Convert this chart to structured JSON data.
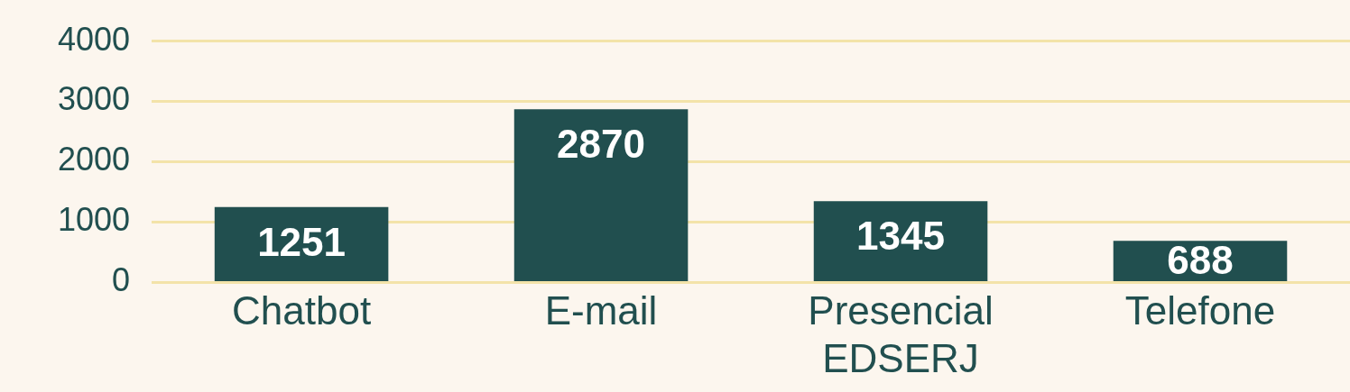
{
  "chart_data": {
    "type": "bar",
    "categories": [
      "Chatbot",
      "E-mail",
      "Presencial EDSERJ",
      "Telefone"
    ],
    "values": [
      1251,
      2870,
      1345,
      688
    ],
    "color": "#214f4f",
    "ylim": [
      0,
      4000
    ],
    "yticks": [
      0,
      1000,
      2000,
      3000,
      4000
    ],
    "grid": "y",
    "data_labels": true
  }
}
